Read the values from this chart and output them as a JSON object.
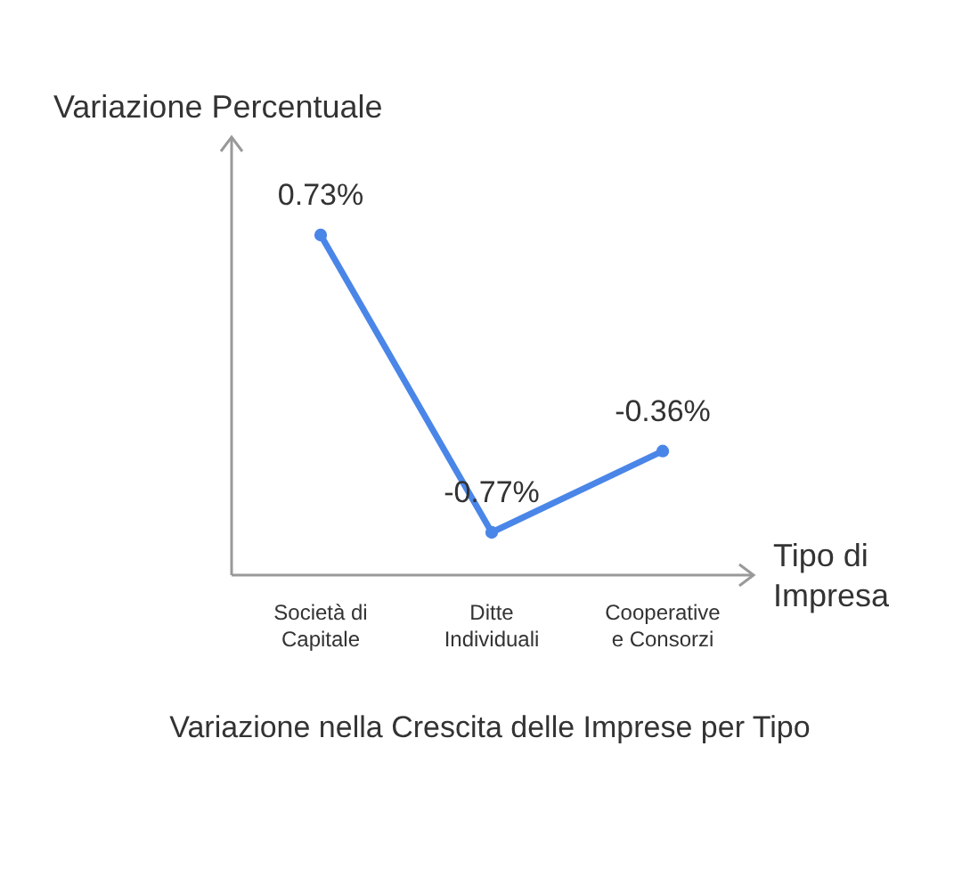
{
  "chart_data": {
    "type": "line",
    "title": "Variazione nella Crescita delle Imprese per Tipo",
    "xlabel": "Tipo di Impresa",
    "ylabel": "Variazione Percentuale",
    "categories": [
      "Società di Capitale",
      "Ditte Individuali",
      "Cooperative e Consorzi"
    ],
    "series": [
      {
        "color": "#4a86e8",
        "values": [
          0.73,
          -0.77,
          -0.36
        ],
        "value_labels": [
          "0.73%",
          "-0.77%",
          "-0.36%"
        ]
      }
    ],
    "marker": "circle"
  }
}
